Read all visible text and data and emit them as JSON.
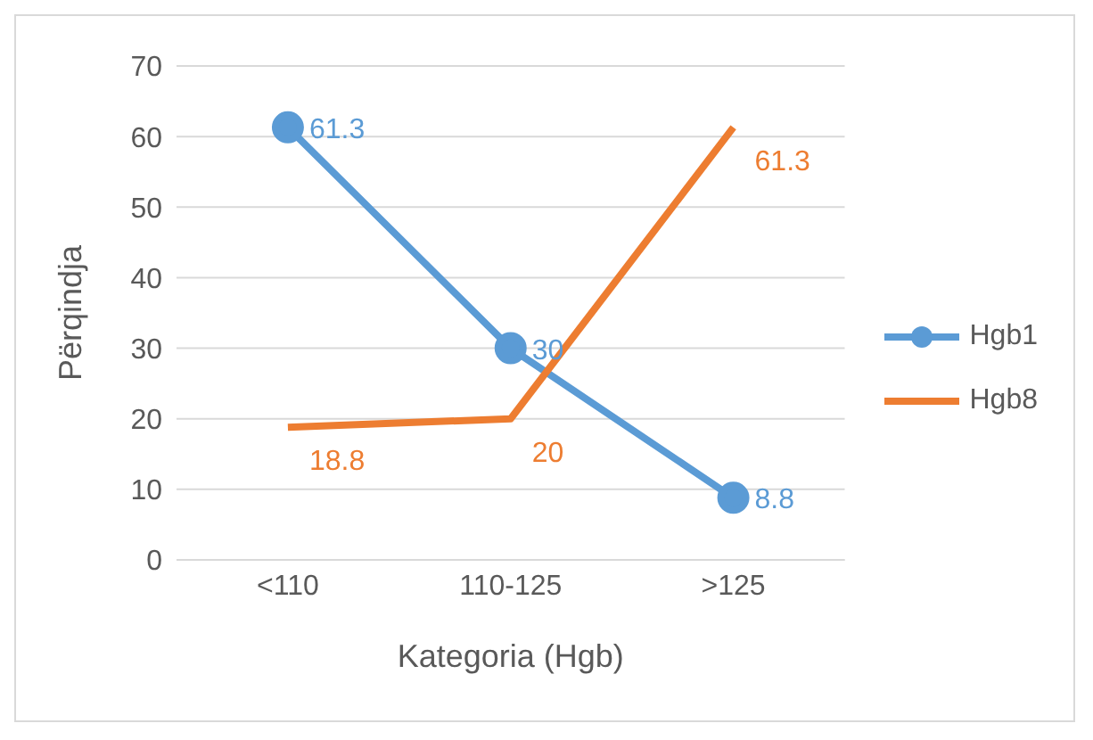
{
  "chart_data": {
    "type": "line",
    "xlabel": "Kategoria (Hgb)",
    "ylabel": "Përqindja",
    "categories": [
      "<110",
      "110-125",
      ">125"
    ],
    "series": [
      {
        "name": "Hgb1",
        "color": "#5b9bd5",
        "values": [
          61.3,
          30,
          8.8
        ],
        "marker": "circle"
      },
      {
        "name": "Hgb8",
        "color": "#ed7d31",
        "values": [
          18.8,
          20,
          61.3
        ],
        "marker": "none"
      }
    ],
    "ylim": [
      0,
      70
    ],
    "yticks": [
      0,
      10,
      20,
      30,
      40,
      50,
      60,
      70
    ],
    "grid": "y",
    "legend": "right",
    "data_labels": true,
    "line_style": "solid"
  }
}
